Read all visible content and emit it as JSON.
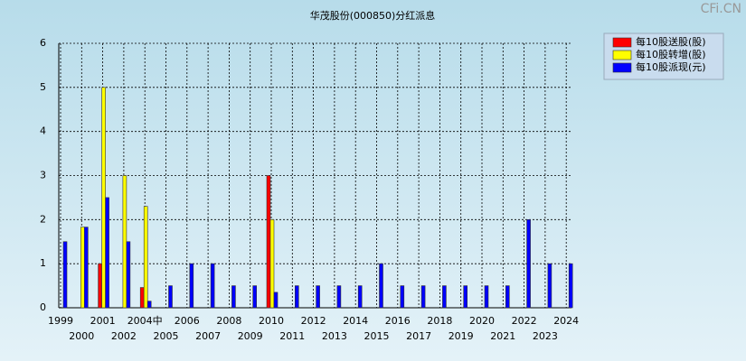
{
  "chart_data": {
    "type": "bar",
    "title": "华茂股份(000850)分红派息",
    "watermark": "CFi.CN",
    "categories": [
      "1999",
      "2000",
      "2001",
      "2002",
      "2004中",
      "2005",
      "2006",
      "2007",
      "2008",
      "2009",
      "2010",
      "2011",
      "2012",
      "2013",
      "2014",
      "2015",
      "2016",
      "2017",
      "2018",
      "2019",
      "2020",
      "2021",
      "2022",
      "2023",
      "2024"
    ],
    "series": [
      {
        "name": "每10股送股(股)",
        "color": "#ff0000",
        "values": [
          null,
          null,
          1,
          null,
          0.46,
          null,
          null,
          null,
          null,
          null,
          3,
          null,
          null,
          null,
          null,
          null,
          null,
          null,
          null,
          null,
          null,
          null,
          null,
          null,
          null
        ]
      },
      {
        "name": "每10股转增(股)",
        "color": "#ffff00",
        "values": [
          null,
          1.83,
          5,
          3,
          2.3,
          null,
          null,
          null,
          null,
          null,
          2,
          null,
          null,
          null,
          null,
          null,
          null,
          null,
          null,
          null,
          null,
          null,
          null,
          null,
          null
        ]
      },
      {
        "name": "每10股派现(元)",
        "color": "#0000ff",
        "values": [
          1.5,
          1.83,
          2.5,
          1.5,
          0.15,
          0.5,
          1,
          1,
          0.5,
          0.5,
          0.35,
          0.5,
          0.5,
          0.5,
          0.5,
          1,
          0.5,
          0.5,
          0.5,
          0.5,
          0.5,
          0.5,
          2,
          1,
          1
        ]
      }
    ],
    "ylim": [
      0,
      6
    ],
    "yticks": [
      0,
      1,
      2,
      3,
      4,
      5,
      6
    ],
    "grid": true
  }
}
